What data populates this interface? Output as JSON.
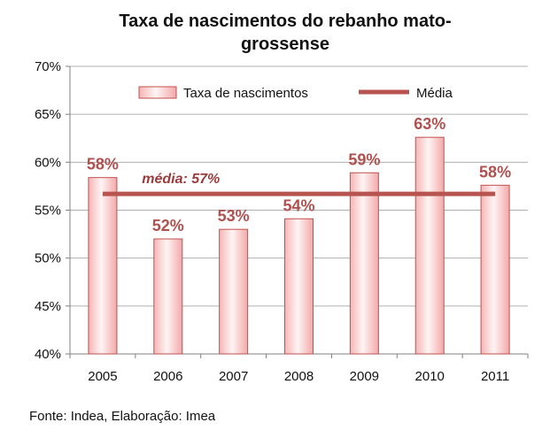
{
  "chart_data": {
    "type": "bar",
    "title_lines": [
      "Taxa de nascimentos do rebanho mato-",
      "grossense"
    ],
    "categories": [
      "2005",
      "2006",
      "2007",
      "2008",
      "2009",
      "2010",
      "2011"
    ],
    "series": [
      {
        "name": "Taxa de nascimentos",
        "values": [
          58.4,
          52.0,
          53.0,
          54.1,
          58.9,
          62.6,
          57.6
        ]
      }
    ],
    "data_labels": [
      "58%",
      "52%",
      "53%",
      "54%",
      "59%",
      "63%",
      "58%"
    ],
    "average": {
      "name": "Média",
      "value": 56.7,
      "label": "média: 57%"
    },
    "yticks": [
      40,
      45,
      50,
      55,
      60,
      65,
      70
    ],
    "ytick_labels": [
      "40%",
      "45%",
      "50%",
      "55%",
      "60%",
      "65%",
      "70%"
    ],
    "ylim": [
      40,
      70
    ],
    "grid": true,
    "legend_position": "top-center",
    "colors": {
      "bar_fill_light": "#fff0f0",
      "bar_fill_dark": "#f2a8a8",
      "bar_stroke": "#c0504d",
      "average_line": "#b85450",
      "data_label": "#b0504f",
      "grid": "#b0b0b0"
    }
  },
  "source_text": "Fonte: Indea, Elaboração: Imea"
}
